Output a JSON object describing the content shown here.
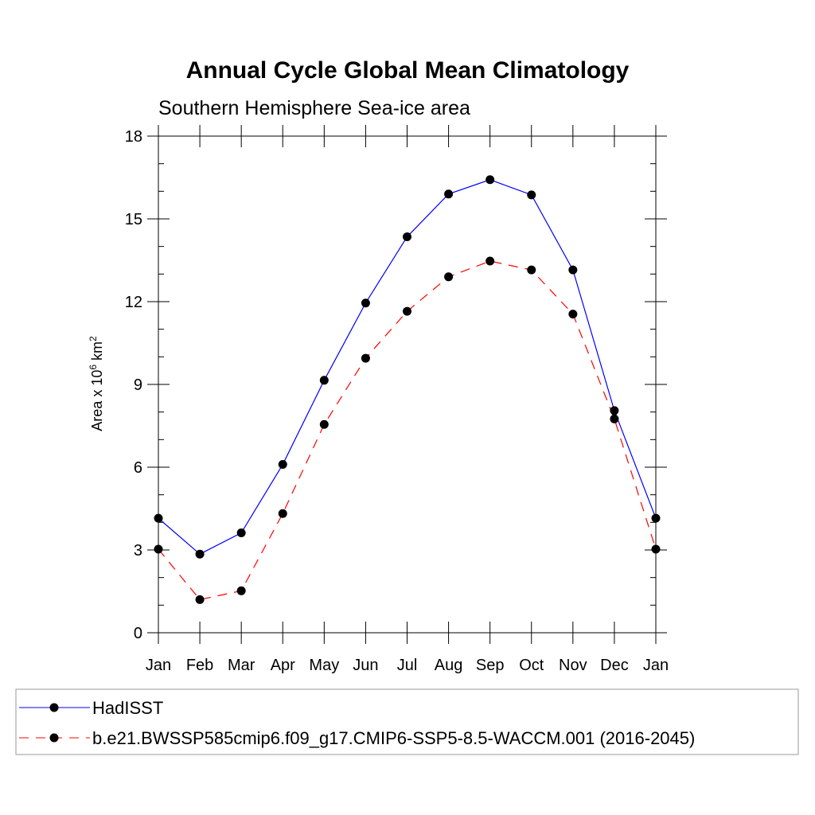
{
  "chart_data": {
    "type": "line",
    "title": "Annual Cycle Global Mean Climatology",
    "subtitle": "Southern Hemisphere Sea-ice area",
    "ylabel": {
      "prefix": "Area x 10",
      "exp1": "6",
      "mid": " km",
      "exp2": "2"
    },
    "categories": [
      "Jan",
      "Feb",
      "Mar",
      "Apr",
      "May",
      "Jun",
      "Jul",
      "Aug",
      "Sep",
      "Oct",
      "Nov",
      "Dec",
      "Jan"
    ],
    "ylim": [
      0,
      18
    ],
    "yticks": [
      "0",
      "3",
      "6",
      "9",
      "12",
      "15",
      "18"
    ],
    "series": [
      {
        "name": "HadISST",
        "color": "#0000ff",
        "style": "solid",
        "values": [
          4.15,
          2.85,
          3.62,
          6.1,
          9.15,
          11.95,
          14.35,
          15.9,
          16.42,
          15.87,
          13.15,
          8.05,
          4.15
        ]
      },
      {
        "name": "b.e21.BWSSP585cmip6.f09_g17.CMIP6-SSP5-8.5-WACCM.001 (2016-2045)",
        "color": "#ff0000",
        "style": "dashed",
        "values": [
          3.03,
          1.2,
          1.52,
          4.32,
          7.55,
          9.95,
          11.65,
          12.9,
          13.47,
          13.15,
          11.55,
          7.75,
          3.03
        ]
      }
    ]
  }
}
